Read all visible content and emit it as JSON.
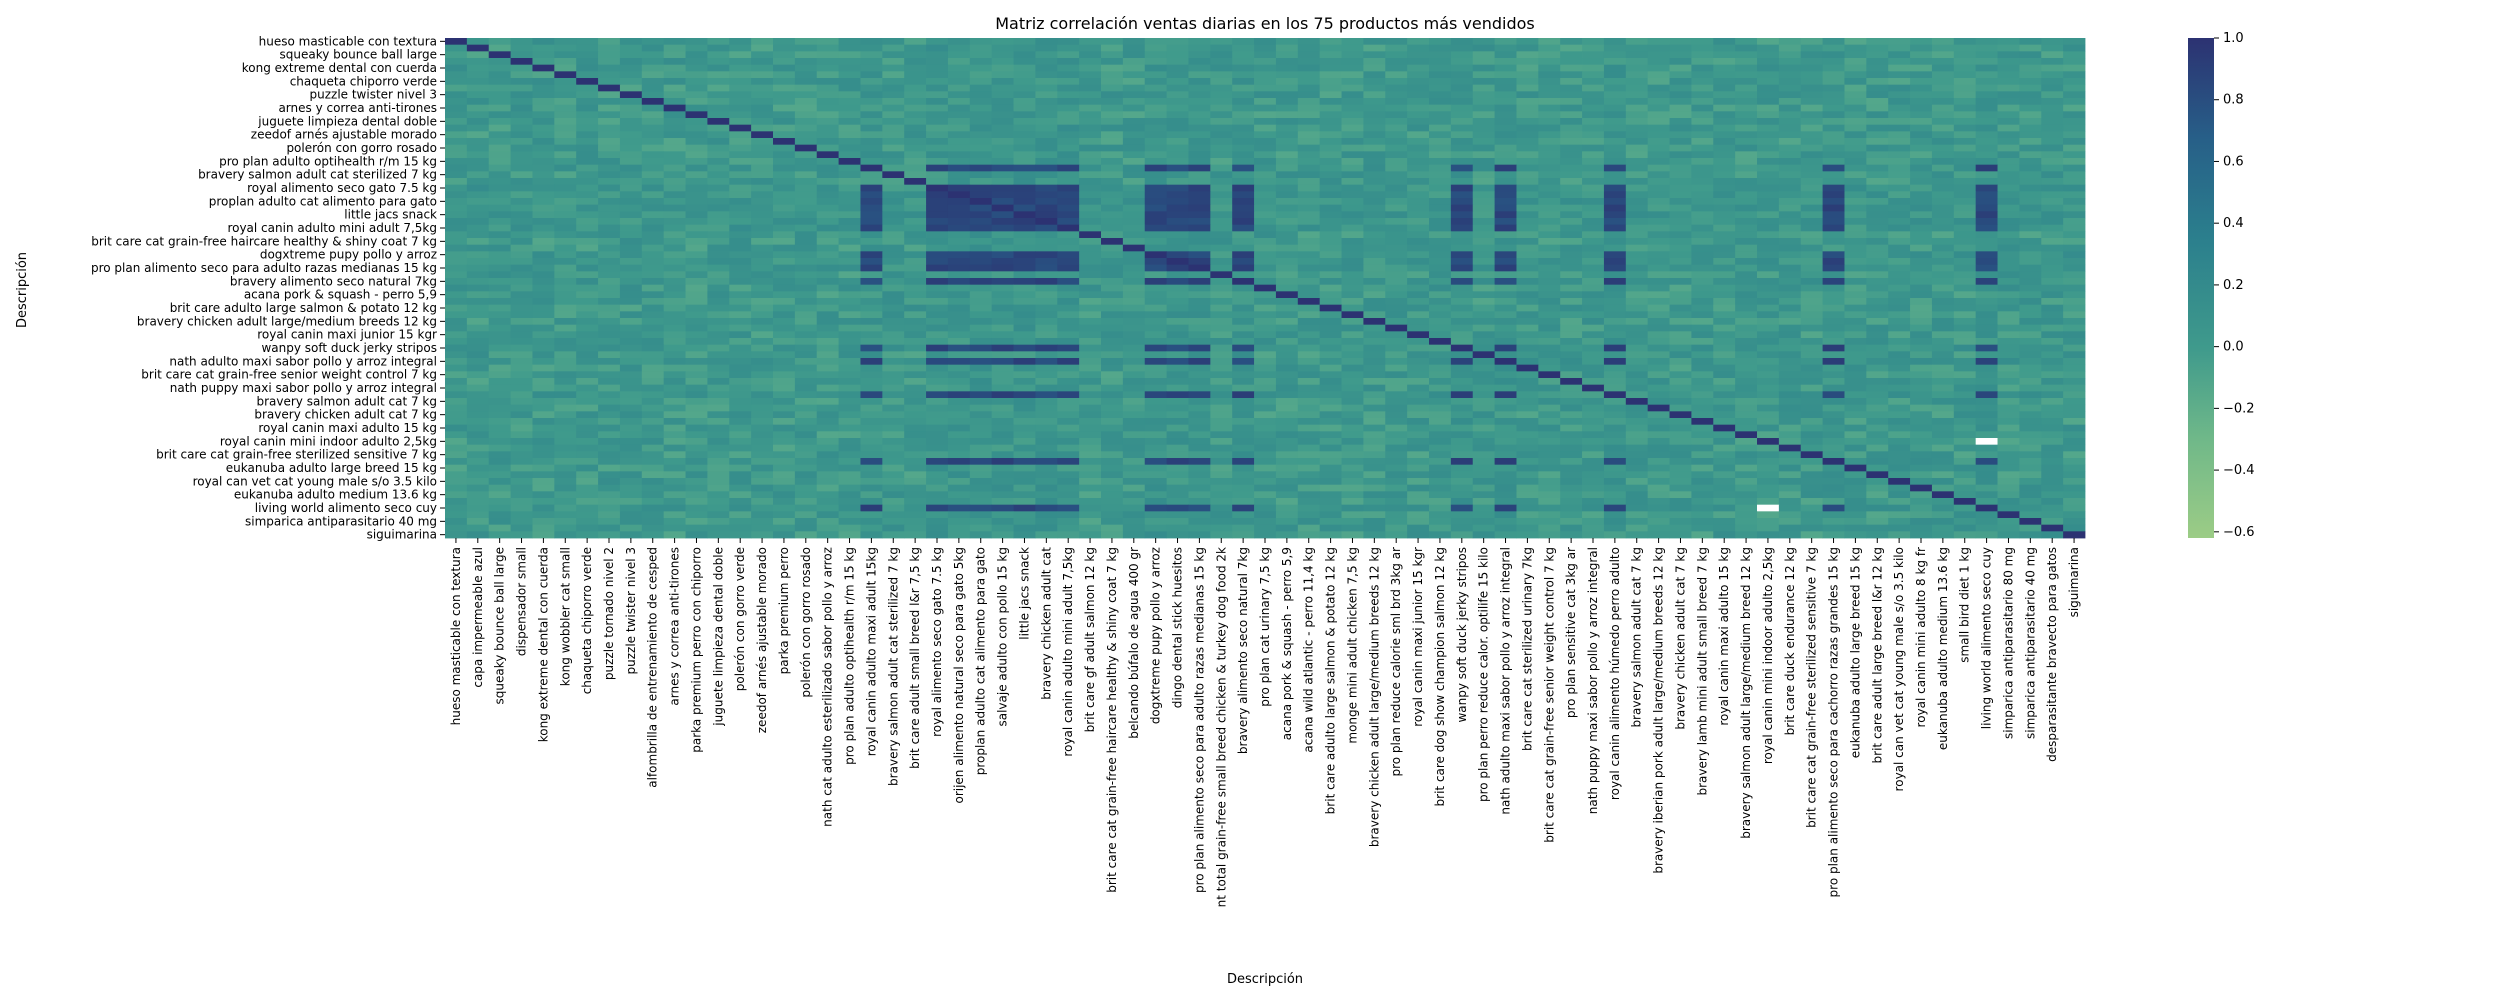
{
  "chart_data": {
    "type": "heatmap",
    "title": "Matriz correlación ventas diarias en los 75 productos más vendidos",
    "xlabel": "Descripción",
    "ylabel": "Descripción",
    "value_range": [
      -0.62,
      1.0
    ],
    "colormap": "crest",
    "colors": {
      "low": "#9ccc86",
      "mid": "#3f9a8c",
      "high": "#2c3272",
      "missing": "#ffffff"
    },
    "colorbar_ticks": [
      "1.0",
      "0.8",
      "0.6",
      "0.4",
      "0.2",
      "0.0",
      "−0.2",
      "−0.4",
      "−0.6"
    ],
    "colorbar_tick_values": [
      1.0,
      0.8,
      0.6,
      0.4,
      0.2,
      0.0,
      -0.2,
      -0.4,
      -0.6
    ],
    "y_tick_labels": [
      "hueso masticable con textura",
      "squeaky bounce ball large",
      "kong extreme dental con cuerda",
      "chaqueta chiporro verde",
      "puzzle twister nivel 3",
      "arnes y correa anti-tirones",
      "juguete limpieza dental doble",
      "zeedof arnés ajustable morado",
      "polerón con gorro rosado",
      "pro plan adulto optihealth r/m 15 kg",
      "bravery salmon adult cat sterilized 7 kg",
      "royal alimento seco gato 7.5 kg",
      "proplan adulto cat alimento para gato",
      "little jacs snack",
      "royal canin adulto mini adult 7,5kg",
      "brit care cat grain-free haircare healthy & shiny coat 7 kg",
      "dogxtreme pupy pollo y arroz",
      "pro plan alimento seco para adulto razas medianas 15 kg",
      "bravery alimento seco natural 7kg",
      "acana pork & squash - perro 5,9",
      "brit care adulto large salmon & potato 12 kg",
      "bravery chicken adult large/medium breeds 12 kg",
      "royal canin maxi junior 15 kgr",
      "wanpy soft duck jerky stripos",
      "nath adulto maxi sabor pollo y arroz integral",
      "brit care cat grain-free senior weight control 7 kg",
      "nath puppy maxi sabor pollo y arroz integral",
      "bravery salmon adult cat 7 kg",
      "bravery chicken adult cat 7 kg",
      "royal canin maxi adulto 15 kg",
      "royal canin mini indoor adulto 2,5kg",
      "brit care cat grain-free sterilized sensitive 7 kg",
      "eukanuba adulto large breed 15 kg",
      "royal can  vet cat  young male s/o 3.5 kilo",
      "eukanuba adulto medium 13.6 kg",
      "living world alimento seco cuy",
      "simparica antiparasitario 40 mg",
      "siguimarina"
    ],
    "x_tick_labels": [
      "hueso masticable con textura",
      "capa impermeable azul",
      "squeaky bounce ball large",
      "dispensador small",
      "kong extreme dental con cuerda",
      "kong wobbler cat small",
      "chaqueta chiporro verde",
      "puzzle tornado nivel 2",
      "puzzle twister nivel 3",
      "alfombrilla de entrenamiento de cesped",
      "arnes y correa anti-tirones",
      "parka premium perro con chiporro",
      "juguete limpieza dental doble",
      "polerón con gorro verde",
      "zeedof arnés ajustable morado",
      "parka premium perro",
      "polerón con gorro rosado",
      "nath cat adulto esterilizado sabor pollo y arroz",
      "pro plan adulto optihealth r/m 15 kg",
      "royal canin adulto maxi adult 15kg",
      "bravery salmon adult cat sterilized 7 kg",
      "brit care adult small breed l&r 7,5 kg",
      "royal alimento seco gato 7.5 kg",
      "orijen alimento natural seco para gato 5kg",
      "proplan adulto cat alimento para gato",
      "salvaje adulto con pollo 15 kg",
      "little jacs snack",
      "bravery chicken adult cat",
      "royal canin adulto mini adult 7,5kg",
      "brit care gf adult salmon 12 kg",
      "brit care cat grain-free haircare healthy & shiny coat 7 kg",
      "belcando búfalo de agua 400 gr",
      "dogxtreme pupy pollo y arroz",
      "dingo dental stick huesitos",
      "pro plan alimento seco para adulto razas medianas 15 kg",
      "nt total grain-free small breed chicken & turkey dog food 2k",
      "bravery alimento seco natural 7kg",
      "pro plan cat urinary 7,5 kg",
      "acana pork & squash - perro 5,9",
      "acana wild atlantic - perro 11,4 kg",
      "brit care adulto large salmon & potato 12 kg",
      "monge mini adult chicken 7,5 kg",
      "bravery chicken adult large/medium breeds 12 kg",
      "pro plan reduce calorie sml brd 3kg ar",
      "royal canin maxi junior 15 kgr",
      "brit care dog show champion salmon 12 kg",
      "wanpy soft duck jerky stripos",
      "pro plan perro reduce calor. optilife 15 kilo",
      "nath adulto maxi sabor pollo y arroz integral",
      "brit care cat sterilized urinary 7kg",
      "brit care cat grain-free senior weight control 7 kg",
      "pro plan sensitive cat 3kg ar",
      "nath puppy maxi sabor pollo y arroz integral",
      "royal canin alimento húmedo perro adulto",
      "bravery salmon adult cat 7 kg",
      "bravery iberian pork adult large/medium breeds 12 kg",
      "bravery chicken adult cat 7 kg",
      "bravery lamb mini adult small breed 7 kg",
      "royal canin maxi adulto 15 kg",
      "bravery salmon adult large/medium breed 12 kg",
      "royal canin mini indoor adulto 2,5kg",
      "brit care duck endurance 12 kg",
      "brit care cat grain-free sterilized sensitive 7 kg",
      "pro plan alimento seco para cachorro razas grandes 15 kg",
      "eukanuba adulto large breed 15 kg",
      "brit care adult large breed l&r 12 kg",
      "royal can  vet cat  young male s/o 3.5 kilo",
      "royal canin mini adulto  8 kg fr",
      "eukanuba adulto medium 13.6 kg",
      "small bird diet 1 kg",
      "living world alimento seco cuy",
      "simparica antiparasitario 80 mg",
      "simparica antiparasitario 40 mg",
      "desparasitante bravecto para gatos",
      "siguimarina"
    ],
    "strong_cluster_indices": [
      19,
      22,
      23,
      24,
      25,
      26,
      27,
      28,
      32,
      33,
      34,
      36,
      46,
      48,
      53,
      63,
      70
    ],
    "strong_cluster_approx_correlation": 0.85,
    "missing_cells": [
      [
        60,
        70
      ],
      [
        70,
        60
      ]
    ],
    "diagonal_value": 1.0
  }
}
